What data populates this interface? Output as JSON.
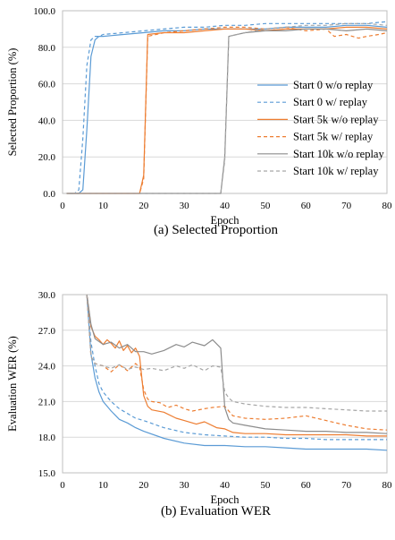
{
  "chart_data": [
    {
      "type": "line",
      "caption": "(a) Selected Proportion",
      "xlabel": "Epoch",
      "ylabel": "Selected Proportion (%)",
      "xlim": [
        0,
        80
      ],
      "ylim": [
        0,
        100
      ],
      "xticks": [
        0,
        10,
        20,
        30,
        40,
        50,
        60,
        70,
        80
      ],
      "yticks": [
        "0.0",
        "20.0",
        "40.0",
        "60.0",
        "80.0",
        "100.0"
      ],
      "ytick_values": [
        0,
        20,
        40,
        60,
        80,
        100
      ],
      "grid": "horizontal",
      "legend": "right",
      "series": [
        {
          "name": "Start 0 w/o replay",
          "color": "#5b9bd5",
          "dash": "solid",
          "x": [
            1,
            4,
            5,
            6,
            7,
            8,
            9,
            10,
            15,
            20,
            25,
            30,
            35,
            40,
            45,
            50,
            55,
            60,
            65,
            70,
            75,
            80
          ],
          "y": [
            0,
            0,
            2,
            35,
            75,
            84,
            86,
            86,
            87,
            88,
            89,
            89,
            90,
            90,
            90,
            90,
            91,
            91,
            91,
            92,
            92,
            91
          ]
        },
        {
          "name": "Start 0 w/ replay",
          "color": "#5b9bd5",
          "dash": "dashed",
          "x": [
            1,
            3,
            4,
            5,
            6,
            7,
            8,
            9,
            10,
            15,
            20,
            25,
            30,
            35,
            40,
            45,
            50,
            55,
            60,
            65,
            70,
            75,
            80
          ],
          "y": [
            0,
            0,
            2,
            30,
            70,
            84,
            86,
            86,
            87,
            88,
            89,
            90,
            91,
            91,
            92,
            92,
            93,
            93,
            93,
            93,
            93,
            93,
            94
          ]
        },
        {
          "name": "Start 5k w/o replay",
          "color": "#ed7d31",
          "dash": "solid",
          "x": [
            1,
            19,
            20,
            21,
            25,
            30,
            35,
            40,
            45,
            50,
            55,
            60,
            65,
            70,
            75,
            80
          ],
          "y": [
            0,
            0,
            10,
            87,
            88,
            88,
            89,
            90,
            90,
            89,
            90,
            90,
            90,
            91,
            91,
            90
          ]
        },
        {
          "name": "Start 5k w/ replay",
          "color": "#ed7d31",
          "dash": "dashed",
          "x": [
            1,
            19,
            20,
            21,
            25,
            30,
            35,
            40,
            45,
            50,
            55,
            60,
            65,
            67,
            70,
            73,
            75,
            78,
            80
          ],
          "y": [
            0,
            0,
            8,
            86,
            88,
            89,
            90,
            91,
            91,
            90,
            91,
            89,
            90,
            86,
            87,
            85,
            86,
            87,
            88
          ]
        },
        {
          "name": "Start 10k w/o replay",
          "color": "#8c8c8c",
          "dash": "solid",
          "x": [
            1,
            39,
            40,
            41,
            45,
            50,
            55,
            60,
            65,
            70,
            75,
            80
          ],
          "y": [
            0,
            0,
            20,
            86,
            88,
            89,
            89,
            90,
            90,
            89,
            90,
            89
          ]
        },
        {
          "name": "Start 10k w/ replay",
          "color": "#a6a6a6",
          "dash": "dashed",
          "x": [
            1,
            39,
            40,
            41,
            45,
            50,
            55,
            60,
            65,
            70,
            75,
            80
          ],
          "y": [
            0,
            0,
            18,
            86,
            88,
            90,
            91,
            92,
            92,
            93,
            93,
            92
          ]
        }
      ]
    },
    {
      "type": "line",
      "caption": "(b) Evaluation WER",
      "xlabel": "Epoch",
      "ylabel": "Evaluation WER (%)",
      "xlim": [
        0,
        80
      ],
      "ylim": [
        15,
        30
      ],
      "xticks": [
        0,
        10,
        20,
        30,
        40,
        50,
        60,
        70,
        80
      ],
      "yticks": [
        "15.0",
        "18.0",
        "21.0",
        "24.0",
        "27.0",
        "30.0"
      ],
      "ytick_values": [
        15,
        18,
        21,
        24,
        27,
        30
      ],
      "grid": "horizontal",
      "series": [
        {
          "name": "Start 0 w/o replay",
          "color": "#5b9bd5",
          "dash": "solid",
          "x": [
            6,
            7,
            8,
            9,
            10,
            12,
            14,
            16,
            18,
            20,
            25,
            30,
            35,
            40,
            45,
            50,
            55,
            60,
            65,
            70,
            75,
            80
          ],
          "y": [
            30,
            25,
            23,
            21.8,
            21,
            20.2,
            19.5,
            19.2,
            18.8,
            18.5,
            17.9,
            17.5,
            17.3,
            17.3,
            17.2,
            17.2,
            17.1,
            17.0,
            17.0,
            17.0,
            17.0,
            16.9
          ]
        },
        {
          "name": "Start 0 w/ replay",
          "color": "#5b9bd5",
          "dash": "dashed",
          "x": [
            6,
            7,
            8,
            9,
            10,
            12,
            14,
            16,
            18,
            20,
            25,
            30,
            35,
            40,
            45,
            50,
            55,
            60,
            65,
            70,
            75,
            80
          ],
          "y": [
            30,
            26,
            24,
            22.5,
            21.8,
            21,
            20.4,
            20,
            19.6,
            19.4,
            18.8,
            18.4,
            18.2,
            18.1,
            18.0,
            18.0,
            17.9,
            17.9,
            17.8,
            17.8,
            17.8,
            17.8
          ]
        },
        {
          "name": "Start 5k w/o replay",
          "color": "#ed7d31",
          "dash": "solid",
          "x": [
            6,
            7,
            8,
            9,
            10,
            11,
            12,
            13,
            14,
            15,
            16,
            17,
            18,
            19,
            20,
            21,
            22,
            25,
            28,
            30,
            33,
            35,
            38,
            40,
            42,
            45,
            50,
            55,
            60,
            65,
            70,
            75,
            80
          ],
          "y": [
            30,
            27.3,
            26.5,
            26.2,
            25.8,
            26.2,
            25.9,
            25.5,
            26.1,
            25.3,
            25.7,
            25.1,
            25.5,
            24.8,
            21.5,
            20.6,
            20.3,
            20.1,
            19.6,
            19.4,
            19.1,
            19.3,
            18.8,
            18.7,
            18.4,
            18.3,
            18.3,
            18.2,
            18.2,
            18.2,
            18.2,
            18.1,
            18.1
          ]
        },
        {
          "name": "Start 5k w/ replay",
          "color": "#ed7d31",
          "dash": "dashed",
          "x": [
            6,
            7,
            8,
            10,
            12,
            14,
            16,
            18,
            19,
            20,
            21,
            22,
            24,
            26,
            28,
            30,
            32,
            35,
            37,
            40,
            42,
            45,
            50,
            55,
            60,
            65,
            70,
            75,
            80
          ],
          "y": [
            30,
            24.8,
            24.2,
            24,
            23.5,
            24.1,
            23.6,
            24.2,
            23.9,
            22,
            21.2,
            21,
            20.9,
            20.5,
            20.7,
            20.4,
            20.2,
            20.4,
            20.5,
            20.6,
            19.8,
            19.6,
            19.5,
            19.6,
            19.8,
            19.4,
            19,
            18.7,
            18.6
          ]
        },
        {
          "name": "Start 10k w/o replay",
          "color": "#8c8c8c",
          "dash": "solid",
          "x": [
            6,
            7,
            8,
            10,
            12,
            14,
            16,
            18,
            20,
            22,
            25,
            28,
            30,
            32,
            35,
            37,
            39,
            40,
            41,
            42,
            45,
            50,
            55,
            60,
            65,
            70,
            75,
            80
          ],
          "y": [
            30,
            27.5,
            26.3,
            25.8,
            26,
            25.5,
            25.8,
            25.2,
            25.2,
            25,
            25.3,
            25.8,
            25.6,
            26,
            25.7,
            26.2,
            25.5,
            20.5,
            19.5,
            19.2,
            19,
            18.7,
            18.6,
            18.5,
            18.5,
            18.4,
            18.4,
            18.3
          ]
        },
        {
          "name": "Start 10k w/ replay",
          "color": "#a6a6a6",
          "dash": "dashed",
          "x": [
            6,
            7,
            8,
            10,
            12,
            14,
            16,
            18,
            20,
            22,
            25,
            28,
            30,
            32,
            35,
            37,
            39,
            40,
            41,
            42,
            45,
            50,
            55,
            60,
            65,
            70,
            75,
            80
          ],
          "y": [
            30,
            24.8,
            24.2,
            24,
            23.8,
            24.1,
            23.7,
            23.9,
            23.7,
            23.8,
            23.6,
            24,
            23.8,
            24.1,
            23.6,
            24,
            23.9,
            21.8,
            21.3,
            21,
            20.8,
            20.6,
            20.5,
            20.5,
            20.4,
            20.3,
            20.2,
            20.2
          ]
        }
      ]
    }
  ]
}
